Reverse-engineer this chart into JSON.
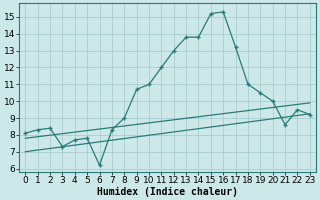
{
  "xlabel": "Humidex (Indice chaleur)",
  "bg_color": "#cde8e8",
  "grid_color": "#aacccc",
  "line_color": "#2a7a7a",
  "xlim": [
    -0.5,
    23.5
  ],
  "ylim": [
    5.8,
    15.8
  ],
  "yticks": [
    6,
    7,
    8,
    9,
    10,
    11,
    12,
    13,
    14,
    15
  ],
  "xticks": [
    0,
    1,
    2,
    3,
    4,
    5,
    6,
    7,
    8,
    9,
    10,
    11,
    12,
    13,
    14,
    15,
    16,
    17,
    18,
    19,
    20,
    21,
    22,
    23
  ],
  "xtick_labels": [
    "0",
    "1",
    "2",
    "3",
    "4",
    "5",
    "6",
    "7",
    "8",
    "9",
    "10",
    "11",
    "12",
    "13",
    "14",
    "15",
    "16",
    "17",
    "18",
    "19",
    "20",
    "21",
    "22",
    "23"
  ],
  "series1_x": [
    0,
    1,
    2,
    3,
    4,
    5,
    6,
    7,
    8,
    9,
    10,
    11,
    12,
    13,
    14,
    15,
    16,
    17,
    18,
    19,
    20,
    21,
    22,
    23
  ],
  "series1_y": [
    8.1,
    8.3,
    8.4,
    7.3,
    7.7,
    7.8,
    6.2,
    8.3,
    9.0,
    10.7,
    11.0,
    12.0,
    13.0,
    13.8,
    13.8,
    15.2,
    15.3,
    13.2,
    11.0,
    10.5,
    10.0,
    8.6,
    9.5,
    9.2
  ],
  "series2_x": [
    0,
    23
  ],
  "series2_y": [
    7.8,
    9.9
  ],
  "series3_x": [
    0,
    23
  ],
  "series3_y": [
    7.0,
    9.25
  ],
  "xlabel_fontsize": 7,
  "tick_fontsize": 6.5
}
